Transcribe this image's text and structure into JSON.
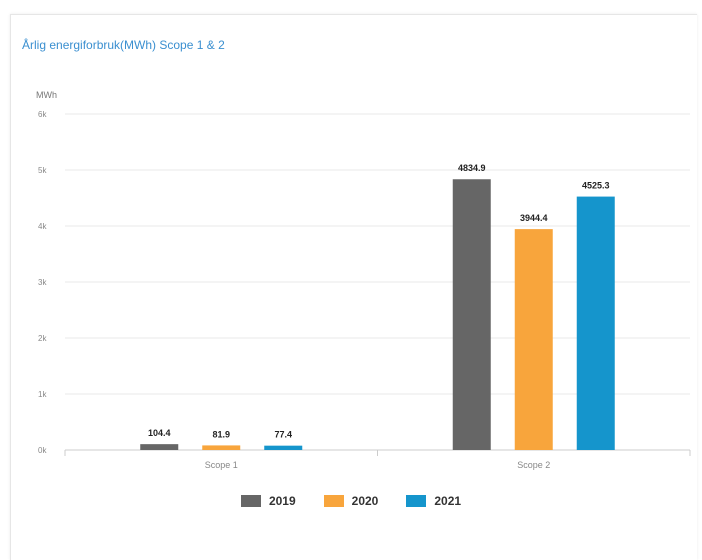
{
  "chart_data": {
    "type": "bar",
    "title": "Årlig energiforbruk(MWh) Scope 1 & 2",
    "ylabel": "MWh",
    "categories": [
      "Scope 1",
      "Scope 2"
    ],
    "series": [
      {
        "name": "2019",
        "color": "#666666",
        "values": [
          104.4,
          4834.9
        ],
        "labels": [
          "104.4",
          "4834.9"
        ]
      },
      {
        "name": "2020",
        "color": "#f8a53c",
        "values": [
          81.9,
          3944.4
        ],
        "labels": [
          "81.9",
          "3944.4"
        ]
      },
      {
        "name": "2021",
        "color": "#1595cc",
        "values": [
          77.4,
          4525.3
        ],
        "labels": [
          "77.4",
          "4525.3"
        ]
      }
    ],
    "ylim": [
      0,
      6000
    ],
    "yticks": [
      {
        "value": 0,
        "label": "0k"
      },
      {
        "value": 1000,
        "label": "1k"
      },
      {
        "value": 2000,
        "label": "2k"
      },
      {
        "value": 3000,
        "label": "3k"
      },
      {
        "value": 4000,
        "label": "4k"
      },
      {
        "value": 5000,
        "label": "5k"
      },
      {
        "value": 6000,
        "label": "6k"
      }
    ],
    "grid": true,
    "legend_position": "bottom"
  }
}
